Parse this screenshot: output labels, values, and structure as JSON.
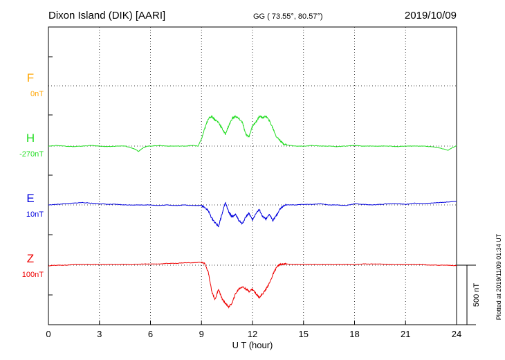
{
  "header": {
    "station": "Dixon Island (DIK)  [AARI]",
    "coords": "GG ( 73.55°,  80.57°)",
    "date": "2019/10/09"
  },
  "footer_note": "Plotted at 2019/11/09 01:34 UT",
  "scale_label": "500 nT",
  "chart_data": {
    "type": "line",
    "xlabel": "U T (hour)",
    "xlim": [
      0,
      24
    ],
    "xticks": [
      "0",
      "3",
      "6",
      "9",
      "12",
      "15",
      "18",
      "21",
      "24"
    ],
    "grid": true,
    "scale_bar_nT": 500,
    "series": [
      {
        "name": "F",
        "baseline_label": "0nT",
        "color": "#ffa500",
        "x": [],
        "values": []
      },
      {
        "name": "H",
        "baseline_label": "-270nT",
        "color": "#22dd22",
        "x": [
          0,
          0.5,
          1,
          1.5,
          2,
          2.5,
          3,
          3.5,
          4,
          4.5,
          5,
          5.3,
          5.5,
          5.8,
          6,
          6.5,
          7,
          7.5,
          8,
          8.5,
          8.8,
          9,
          9.2,
          9.4,
          9.6,
          9.8,
          10,
          10.2,
          10.4,
          10.6,
          10.8,
          11,
          11.2,
          11.4,
          11.6,
          11.8,
          12,
          12.2,
          12.4,
          12.6,
          12.8,
          13,
          13.2,
          13.4,
          13.6,
          13.8,
          14,
          14.5,
          15,
          15.5,
          16,
          16.5,
          17,
          17.5,
          18,
          18.5,
          19,
          19.5,
          20,
          20.5,
          21,
          21.5,
          22,
          22.5,
          23,
          23.5,
          24
        ],
        "values": [
          0,
          5,
          0,
          -5,
          0,
          5,
          0,
          -5,
          0,
          0,
          -20,
          -45,
          -20,
          0,
          0,
          5,
          0,
          0,
          0,
          5,
          0,
          60,
          150,
          230,
          250,
          220,
          200,
          150,
          100,
          170,
          230,
          250,
          230,
          200,
          100,
          80,
          170,
          200,
          250,
          240,
          250,
          210,
          150,
          80,
          50,
          20,
          10,
          0,
          0,
          5,
          0,
          0,
          -5,
          0,
          5,
          0,
          0,
          0,
          0,
          -5,
          0,
          0,
          0,
          -5,
          -15,
          -35,
          5
        ]
      },
      {
        "name": "E",
        "baseline_label": "10nT",
        "color": "#0000dd",
        "x": [
          0,
          0.5,
          1,
          1.5,
          2,
          2.5,
          3,
          3.5,
          4,
          4.5,
          5,
          5.5,
          6,
          6.5,
          7,
          7.5,
          8,
          8.5,
          9,
          9.2,
          9.4,
          9.6,
          9.8,
          10,
          10.2,
          10.4,
          10.6,
          10.8,
          11,
          11.2,
          11.4,
          11.6,
          11.8,
          12,
          12.2,
          12.4,
          12.6,
          12.8,
          13,
          13.2,
          13.4,
          13.6,
          13.8,
          14,
          14.5,
          15,
          15.5,
          16,
          16.5,
          17,
          17.5,
          18,
          18.5,
          19,
          19.5,
          20,
          20.5,
          21,
          21.5,
          22,
          22.5,
          23,
          23.5,
          24
        ],
        "values": [
          0,
          5,
          10,
          15,
          20,
          15,
          10,
          5,
          5,
          0,
          0,
          0,
          0,
          -5,
          0,
          -5,
          0,
          -5,
          -5,
          -20,
          -50,
          -110,
          -150,
          -180,
          -80,
          20,
          -60,
          -100,
          -80,
          -130,
          -160,
          -100,
          -70,
          -130,
          -70,
          -40,
          -100,
          -120,
          -80,
          -130,
          -90,
          -40,
          -10,
          0,
          0,
          5,
          5,
          10,
          0,
          0,
          -5,
          10,
          5,
          0,
          5,
          10,
          10,
          5,
          15,
          10,
          15,
          20,
          25,
          30
        ]
      },
      {
        "name": "Z",
        "baseline_label": "100nT",
        "color": "#ee0000",
        "x": [
          0,
          0.5,
          1,
          1.5,
          2,
          2.5,
          3,
          3.5,
          4,
          4.5,
          5,
          5.5,
          6,
          6.5,
          7,
          7.5,
          8,
          8.5,
          9,
          9.2,
          9.4,
          9.6,
          9.8,
          10,
          10.2,
          10.4,
          10.6,
          10.8,
          11,
          11.2,
          11.4,
          11.6,
          11.8,
          12,
          12.2,
          12.4,
          12.6,
          12.8,
          13,
          13.2,
          13.4,
          13.6,
          13.8,
          14,
          14.5,
          15,
          15.5,
          16,
          16.5,
          17,
          17.5,
          18,
          18.5,
          19,
          19.5,
          20,
          20.5,
          21,
          21.5,
          22,
          22.5,
          23,
          23.5,
          24
        ],
        "values": [
          -5,
          0,
          0,
          5,
          5,
          5,
          5,
          5,
          5,
          5,
          5,
          10,
          10,
          10,
          15,
          15,
          20,
          20,
          25,
          10,
          -60,
          -220,
          -290,
          -200,
          -280,
          -320,
          -350,
          -320,
          -240,
          -200,
          -180,
          -200,
          -220,
          -200,
          -240,
          -270,
          -240,
          -200,
          -150,
          -80,
          -20,
          5,
          10,
          10,
          5,
          5,
          5,
          5,
          5,
          5,
          5,
          5,
          10,
          10,
          10,
          5,
          5,
          5,
          5,
          5,
          0,
          0,
          0,
          -5
        ]
      }
    ]
  }
}
